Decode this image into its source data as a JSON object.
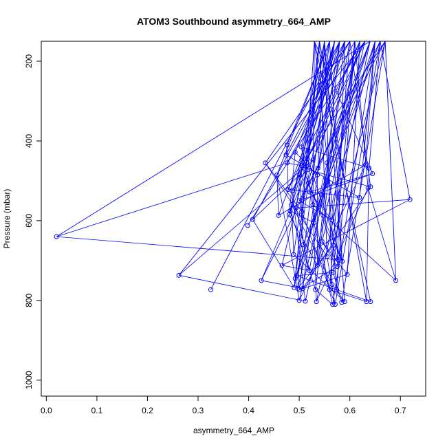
{
  "chart_data": {
    "type": "line",
    "title": "ATOM3 Southbound asymmetry_664_AMP",
    "xlabel": "asymmetry_664_AMP",
    "ylabel": "Pressure (mbar)",
    "xlim": [
      -0.01,
      0.75
    ],
    "ylim": [
      1040,
      150
    ],
    "y_reversed": true,
    "x_ticks": [
      0.0,
      0.1,
      0.2,
      0.3,
      0.4,
      0.5,
      0.6,
      0.7
    ],
    "x_tick_labels": [
      "0.0",
      "0.1",
      "0.2",
      "0.3",
      "0.4",
      "0.5",
      "0.6",
      "0.7"
    ],
    "y_ticks": [
      200,
      400,
      600,
      800,
      1000
    ],
    "y_tick_labels": [
      "200",
      "400",
      "600",
      "800",
      "1000"
    ],
    "grid": false,
    "legend": "none",
    "series_color": "#0000ff",
    "marker": "open-circle",
    "top_points": [
      [
        0.56,
        150
      ],
      [
        0.57,
        150
      ],
      [
        0.58,
        150
      ],
      [
        0.59,
        150
      ],
      [
        0.6,
        150
      ],
      [
        0.61,
        150
      ],
      [
        0.62,
        150
      ],
      [
        0.63,
        150
      ],
      [
        0.64,
        150
      ],
      [
        0.65,
        150
      ],
      [
        0.66,
        150
      ],
      [
        0.67,
        150
      ],
      [
        0.55,
        150
      ],
      [
        0.54,
        150
      ],
      [
        0.53,
        150
      ]
    ],
    "observations": [
      [
        0.476,
        410
      ],
      [
        0.504,
        415
      ],
      [
        0.492,
        428
      ],
      [
        0.474,
        435
      ],
      [
        0.433,
        455
      ],
      [
        0.476,
        455
      ],
      [
        0.516,
        445
      ],
      [
        0.527,
        448
      ],
      [
        0.555,
        455
      ],
      [
        0.631,
        460
      ],
      [
        0.638,
        468
      ],
      [
        0.505,
        462
      ],
      [
        0.537,
        468
      ],
      [
        0.517,
        472
      ],
      [
        0.645,
        482
      ],
      [
        0.456,
        485
      ],
      [
        0.501,
        485
      ],
      [
        0.536,
        485
      ],
      [
        0.518,
        505
      ],
      [
        0.641,
        515
      ],
      [
        0.636,
        518
      ],
      [
        0.478,
        522
      ],
      [
        0.486,
        525
      ],
      [
        0.52,
        528
      ],
      [
        0.619,
        542
      ],
      [
        0.719,
        547
      ],
      [
        0.5,
        550
      ],
      [
        0.485,
        560
      ],
      [
        0.494,
        568
      ],
      [
        0.527,
        560
      ],
      [
        0.482,
        575
      ],
      [
        0.505,
        577
      ],
      [
        0.48,
        585
      ],
      [
        0.459,
        587
      ],
      [
        0.408,
        597
      ],
      [
        0.565,
        598
      ],
      [
        0.529,
        605
      ],
      [
        0.398,
        612
      ],
      [
        0.02,
        640
      ],
      [
        0.545,
        652
      ],
      [
        0.508,
        660
      ],
      [
        0.567,
        662
      ],
      [
        0.489,
        685
      ],
      [
        0.555,
        690
      ],
      [
        0.577,
        698
      ],
      [
        0.585,
        702
      ],
      [
        0.466,
        712
      ],
      [
        0.536,
        712
      ],
      [
        0.575,
        715
      ],
      [
        0.52,
        725
      ],
      [
        0.567,
        730
      ],
      [
        0.595,
        735
      ],
      [
        0.262,
        737
      ],
      [
        0.495,
        738
      ],
      [
        0.492,
        745
      ],
      [
        0.425,
        750
      ],
      [
        0.691,
        750
      ],
      [
        0.565,
        760
      ],
      [
        0.49,
        768
      ],
      [
        0.497,
        770
      ],
      [
        0.5,
        773
      ],
      [
        0.507,
        770
      ],
      [
        0.325,
        773
      ],
      [
        0.532,
        773
      ],
      [
        0.56,
        773
      ],
      [
        0.574,
        773
      ],
      [
        0.5,
        800
      ],
      [
        0.512,
        802
      ],
      [
        0.534,
        803
      ],
      [
        0.566,
        810
      ],
      [
        0.571,
        810
      ],
      [
        0.584,
        805
      ],
      [
        0.59,
        803
      ],
      [
        0.633,
        803
      ],
      [
        0.641,
        803
      ]
    ]
  }
}
